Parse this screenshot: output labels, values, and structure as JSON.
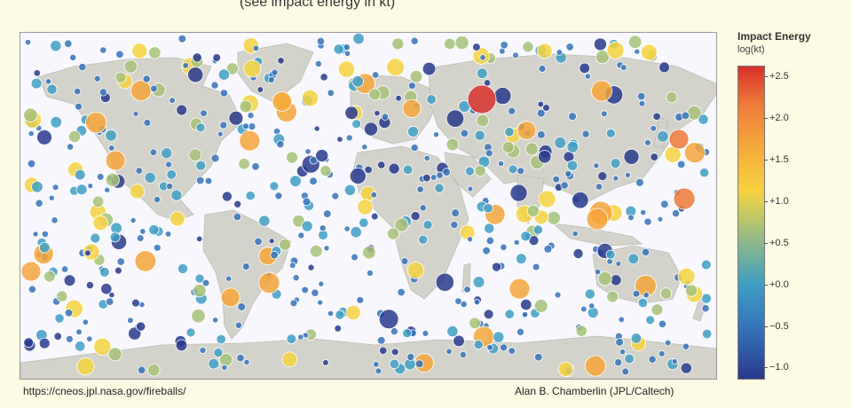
{
  "top_caption": "(see impact energy in kt)",
  "colorbar": {
    "title": "Impact Energy",
    "units": "log(kt)",
    "ticks": [
      "+2.5",
      "+2.0",
      "+1.5",
      "+1.0",
      "+0.5",
      "+0.0",
      "−0.5",
      "−1.0"
    ],
    "tick_values": [
      2.5,
      2.0,
      1.5,
      1.0,
      0.5,
      0.0,
      -0.5,
      -1.0
    ],
    "range": [
      -1.15,
      2.6
    ],
    "colors": [
      "#283a8c",
      "#3672b8",
      "#3f9dc4",
      "#a6c178",
      "#f6d23f",
      "#f5a43a",
      "#ee7a39",
      "#d7302c"
    ]
  },
  "credits": {
    "source_url": "https://cneos.jpl.nasa.gov/fireballs/",
    "author": "Alan B. Chamberlin (JPL/Caltech)"
  },
  "colors": {
    "land": "#d4d3cb",
    "ocean": "#f7f7fd",
    "page": "#fdfbe3"
  }
}
